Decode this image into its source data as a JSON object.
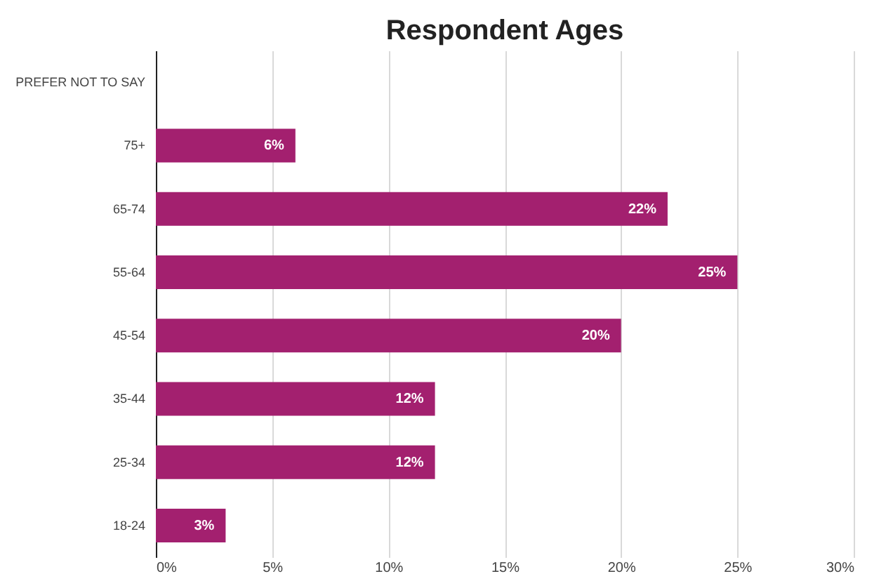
{
  "chart_data": {
    "type": "bar",
    "orientation": "horizontal",
    "title": "Respondent Ages",
    "categories": [
      "PREFER NOT TO SAY",
      "75+",
      "65-74",
      "55-64",
      "45-54",
      "35-44",
      "25-34",
      "18-24"
    ],
    "values": [
      0,
      6,
      22,
      25,
      20,
      12,
      12,
      3
    ],
    "value_labels": [
      null,
      "6%",
      "22%",
      "25%",
      "20%",
      "12%",
      "12%",
      "3%"
    ],
    "color": "#a3206f",
    "xlim": [
      0,
      30
    ],
    "xticks": [
      {
        "value": 0,
        "label": "0%"
      },
      {
        "value": 5,
        "label": "5%"
      },
      {
        "value": 10,
        "label": "10%"
      },
      {
        "value": 15,
        "label": "15%"
      },
      {
        "value": 20,
        "label": "20%"
      },
      {
        "value": 25,
        "label": "25%"
      },
      {
        "value": 30,
        "label": "30%"
      }
    ],
    "grid": "x"
  }
}
